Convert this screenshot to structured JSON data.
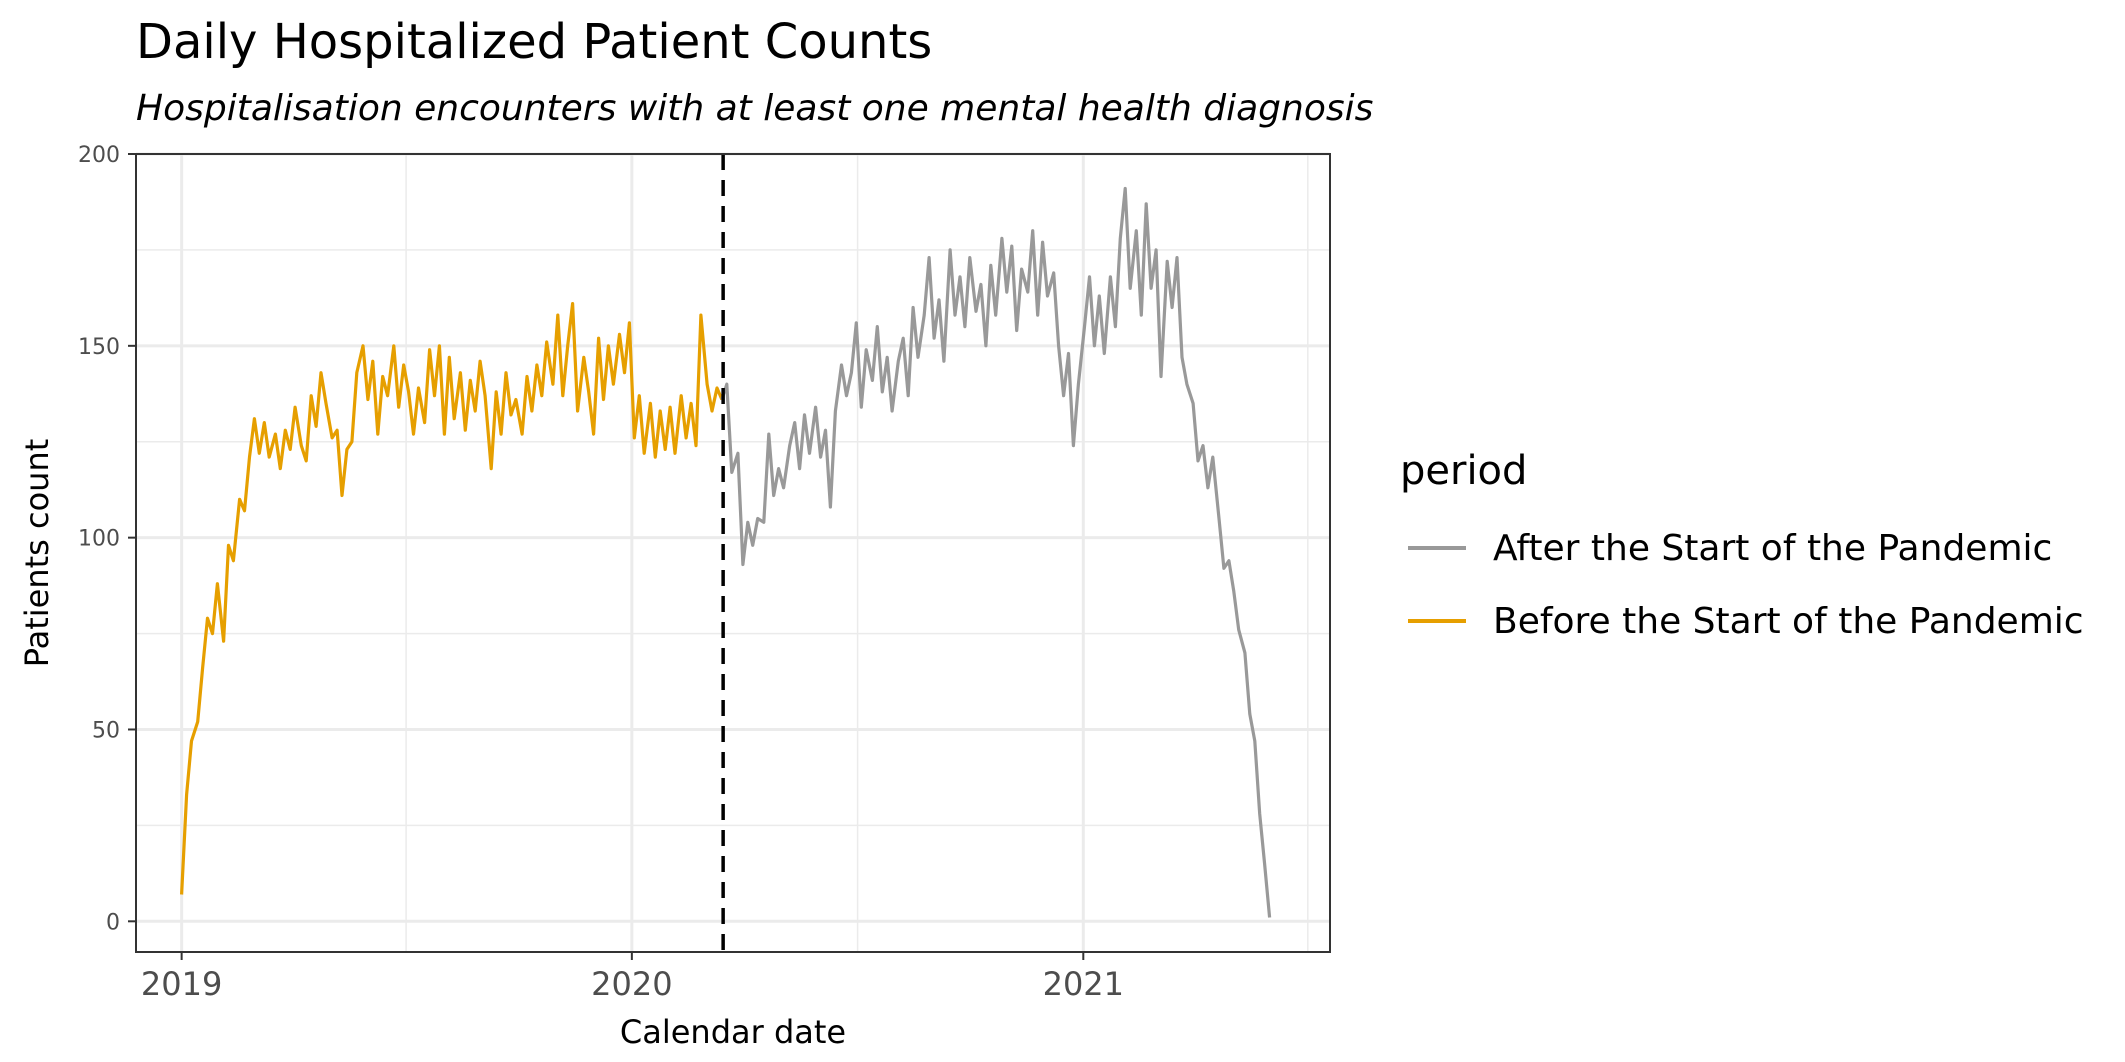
{
  "chart_data": {
    "type": "line",
    "title": "Daily Hospitalized Patient Counts",
    "subtitle": "Hospitalisation encounters with at least one mental health diagnosis",
    "xlabel": "Calendar date",
    "ylabel": "Patients count",
    "x_scale": "date",
    "xlim": [
      "2018-11-25",
      "2021-07-20"
    ],
    "ylim": [
      -8,
      200
    ],
    "x_ticks": [
      {
        "date": "2019-01-01",
        "label": "2019"
      },
      {
        "date": "2020-01-01",
        "label": "2020"
      },
      {
        "date": "2021-01-01",
        "label": "2021"
      }
    ],
    "x_minor_gridlines": [
      "2019-07-02",
      "2020-07-02",
      "2021-07-02"
    ],
    "y_ticks": [
      0,
      50,
      100,
      150,
      200
    ],
    "y_minor_gridlines": [
      25,
      75,
      125,
      175
    ],
    "grid": true,
    "vline": {
      "date": "2020-03-15",
      "style": "dashed",
      "color": "#000000"
    },
    "legend": {
      "title": "period",
      "position": "right",
      "entries": [
        {
          "label": "After the Start of the Pandemic",
          "color": "#999999"
        },
        {
          "label": "Before the Start of the Pandemic",
          "color": "#E69F00"
        }
      ]
    },
    "series": [
      {
        "name": "Before the Start of the Pandemic",
        "color": "#E69F00",
        "points": [
          [
            "2019-01-01",
            7
          ],
          [
            "2019-01-05",
            33
          ],
          [
            "2019-01-09",
            47
          ],
          [
            "2019-01-14",
            52
          ],
          [
            "2019-01-18",
            66
          ],
          [
            "2019-01-22",
            79
          ],
          [
            "2019-01-26",
            75
          ],
          [
            "2019-01-30",
            88
          ],
          [
            "2019-02-04",
            73
          ],
          [
            "2019-02-08",
            98
          ],
          [
            "2019-02-12",
            94
          ],
          [
            "2019-02-17",
            110
          ],
          [
            "2019-02-21",
            107
          ],
          [
            "2019-02-25",
            121
          ],
          [
            "2019-03-01",
            131
          ],
          [
            "2019-03-05",
            122
          ],
          [
            "2019-03-09",
            130
          ],
          [
            "2019-03-13",
            121
          ],
          [
            "2019-03-18",
            127
          ],
          [
            "2019-03-22",
            118
          ],
          [
            "2019-03-26",
            128
          ],
          [
            "2019-03-30",
            123
          ],
          [
            "2019-04-03",
            134
          ],
          [
            "2019-04-08",
            124
          ],
          [
            "2019-04-12",
            120
          ],
          [
            "2019-04-16",
            137
          ],
          [
            "2019-04-20",
            129
          ],
          [
            "2019-04-24",
            143
          ],
          [
            "2019-04-28",
            135
          ],
          [
            "2019-05-03",
            126
          ],
          [
            "2019-05-07",
            128
          ],
          [
            "2019-05-11",
            111
          ],
          [
            "2019-05-15",
            123
          ],
          [
            "2019-05-19",
            125
          ],
          [
            "2019-05-23",
            143
          ],
          [
            "2019-05-28",
            150
          ],
          [
            "2019-06-01",
            136
          ],
          [
            "2019-06-05",
            146
          ],
          [
            "2019-06-09",
            127
          ],
          [
            "2019-06-13",
            142
          ],
          [
            "2019-06-17",
            137
          ],
          [
            "2019-06-22",
            150
          ],
          [
            "2019-06-26",
            134
          ],
          [
            "2019-06-30",
            145
          ],
          [
            "2019-07-04",
            138
          ],
          [
            "2019-07-08",
            127
          ],
          [
            "2019-07-12",
            139
          ],
          [
            "2019-07-17",
            130
          ],
          [
            "2019-07-21",
            149
          ],
          [
            "2019-07-25",
            137
          ],
          [
            "2019-07-29",
            150
          ],
          [
            "2019-08-02",
            127
          ],
          [
            "2019-08-06",
            147
          ],
          [
            "2019-08-10",
            131
          ],
          [
            "2019-08-15",
            143
          ],
          [
            "2019-08-19",
            128
          ],
          [
            "2019-08-23",
            141
          ],
          [
            "2019-08-27",
            133
          ],
          [
            "2019-08-31",
            146
          ],
          [
            "2019-09-04",
            137
          ],
          [
            "2019-09-09",
            118
          ],
          [
            "2019-09-13",
            138
          ],
          [
            "2019-09-17",
            127
          ],
          [
            "2019-09-21",
            143
          ],
          [
            "2019-09-25",
            132
          ],
          [
            "2019-09-29",
            136
          ],
          [
            "2019-10-04",
            127
          ],
          [
            "2019-10-08",
            142
          ],
          [
            "2019-10-12",
            133
          ],
          [
            "2019-10-16",
            145
          ],
          [
            "2019-10-20",
            137
          ],
          [
            "2019-10-24",
            151
          ],
          [
            "2019-10-29",
            140
          ],
          [
            "2019-11-02",
            158
          ],
          [
            "2019-11-06",
            137
          ],
          [
            "2019-11-10",
            150
          ],
          [
            "2019-11-14",
            161
          ],
          [
            "2019-11-18",
            133
          ],
          [
            "2019-11-23",
            147
          ],
          [
            "2019-11-27",
            138
          ],
          [
            "2019-12-01",
            127
          ],
          [
            "2019-12-05",
            152
          ],
          [
            "2019-12-09",
            136
          ],
          [
            "2019-12-13",
            150
          ],
          [
            "2019-12-17",
            140
          ],
          [
            "2019-12-22",
            153
          ],
          [
            "2019-12-26",
            143
          ],
          [
            "2019-12-30",
            156
          ],
          [
            "2020-01-03",
            126
          ],
          [
            "2020-01-07",
            137
          ],
          [
            "2020-01-11",
            122
          ],
          [
            "2020-01-16",
            135
          ],
          [
            "2020-01-20",
            121
          ],
          [
            "2020-01-24",
            133
          ],
          [
            "2020-01-28",
            123
          ],
          [
            "2020-02-01",
            134
          ],
          [
            "2020-02-05",
            122
          ],
          [
            "2020-02-10",
            137
          ],
          [
            "2020-02-14",
            126
          ],
          [
            "2020-02-18",
            135
          ],
          [
            "2020-02-22",
            124
          ],
          [
            "2020-02-26",
            158
          ],
          [
            "2020-03-02",
            140
          ],
          [
            "2020-03-06",
            133
          ],
          [
            "2020-03-10",
            139
          ],
          [
            "2020-03-14",
            136
          ]
        ]
      },
      {
        "name": "After the Start of the Pandemic",
        "color": "#999999",
        "points": [
          [
            "2020-03-14",
            136
          ],
          [
            "2020-03-18",
            140
          ],
          [
            "2020-03-22",
            117
          ],
          [
            "2020-03-27",
            122
          ],
          [
            "2020-03-31",
            93
          ],
          [
            "2020-04-04",
            104
          ],
          [
            "2020-04-08",
            98
          ],
          [
            "2020-04-12",
            105
          ],
          [
            "2020-04-17",
            104
          ],
          [
            "2020-04-21",
            127
          ],
          [
            "2020-04-25",
            111
          ],
          [
            "2020-04-29",
            118
          ],
          [
            "2020-05-03",
            113
          ],
          [
            "2020-05-08",
            124
          ],
          [
            "2020-05-12",
            130
          ],
          [
            "2020-05-16",
            118
          ],
          [
            "2020-05-20",
            132
          ],
          [
            "2020-05-24",
            122
          ],
          [
            "2020-05-29",
            134
          ],
          [
            "2020-06-02",
            121
          ],
          [
            "2020-06-06",
            128
          ],
          [
            "2020-06-10",
            108
          ],
          [
            "2020-06-14",
            133
          ],
          [
            "2020-06-19",
            145
          ],
          [
            "2020-06-23",
            137
          ],
          [
            "2020-06-27",
            143
          ],
          [
            "2020-07-01",
            156
          ],
          [
            "2020-07-05",
            134
          ],
          [
            "2020-07-09",
            149
          ],
          [
            "2020-07-14",
            141
          ],
          [
            "2020-07-18",
            155
          ],
          [
            "2020-07-22",
            138
          ],
          [
            "2020-07-26",
            147
          ],
          [
            "2020-07-30",
            133
          ],
          [
            "2020-08-04",
            146
          ],
          [
            "2020-08-08",
            152
          ],
          [
            "2020-08-12",
            137
          ],
          [
            "2020-08-16",
            160
          ],
          [
            "2020-08-20",
            147
          ],
          [
            "2020-08-25",
            158
          ],
          [
            "2020-08-29",
            173
          ],
          [
            "2020-09-02",
            152
          ],
          [
            "2020-09-06",
            162
          ],
          [
            "2020-09-10",
            146
          ],
          [
            "2020-09-15",
            175
          ],
          [
            "2020-09-19",
            158
          ],
          [
            "2020-09-23",
            168
          ],
          [
            "2020-09-27",
            155
          ],
          [
            "2020-10-01",
            173
          ],
          [
            "2020-10-06",
            159
          ],
          [
            "2020-10-10",
            166
          ],
          [
            "2020-10-14",
            150
          ],
          [
            "2020-10-18",
            171
          ],
          [
            "2020-10-22",
            158
          ],
          [
            "2020-10-27",
            178
          ],
          [
            "2020-10-31",
            164
          ],
          [
            "2020-11-04",
            176
          ],
          [
            "2020-11-08",
            154
          ],
          [
            "2020-11-12",
            170
          ],
          [
            "2020-11-17",
            164
          ],
          [
            "2020-11-21",
            180
          ],
          [
            "2020-11-25",
            158
          ],
          [
            "2020-11-29",
            177
          ],
          [
            "2020-12-03",
            163
          ],
          [
            "2020-12-08",
            169
          ],
          [
            "2020-12-12",
            150
          ],
          [
            "2020-12-16",
            137
          ],
          [
            "2020-12-20",
            148
          ],
          [
            "2020-12-24",
            124
          ],
          [
            "2020-12-28",
            140
          ],
          [
            "2021-01-02",
            155
          ],
          [
            "2021-01-06",
            168
          ],
          [
            "2021-01-10",
            150
          ],
          [
            "2021-01-14",
            163
          ],
          [
            "2021-01-18",
            148
          ],
          [
            "2021-01-23",
            168
          ],
          [
            "2021-01-27",
            155
          ],
          [
            "2021-01-31",
            178
          ],
          [
            "2021-02-04",
            191
          ],
          [
            "2021-02-08",
            165
          ],
          [
            "2021-02-13",
            180
          ],
          [
            "2021-02-17",
            158
          ],
          [
            "2021-02-21",
            187
          ],
          [
            "2021-02-25",
            165
          ],
          [
            "2021-03-01",
            175
          ],
          [
            "2021-03-05",
            142
          ],
          [
            "2021-03-10",
            172
          ],
          [
            "2021-03-14",
            160
          ],
          [
            "2021-03-18",
            173
          ],
          [
            "2021-03-22",
            147
          ],
          [
            "2021-03-26",
            140
          ],
          [
            "2021-03-31",
            135
          ],
          [
            "2021-04-04",
            120
          ],
          [
            "2021-04-08",
            124
          ],
          [
            "2021-04-12",
            113
          ],
          [
            "2021-04-16",
            121
          ],
          [
            "2021-04-21",
            105
          ],
          [
            "2021-04-25",
            92
          ],
          [
            "2021-04-29",
            94
          ],
          [
            "2021-05-03",
            86
          ],
          [
            "2021-05-07",
            76
          ],
          [
            "2021-05-12",
            70
          ],
          [
            "2021-05-16",
            54
          ],
          [
            "2021-05-20",
            47
          ],
          [
            "2021-05-24",
            28
          ],
          [
            "2021-05-28",
            15
          ],
          [
            "2021-06-01",
            1
          ]
        ]
      }
    ]
  }
}
